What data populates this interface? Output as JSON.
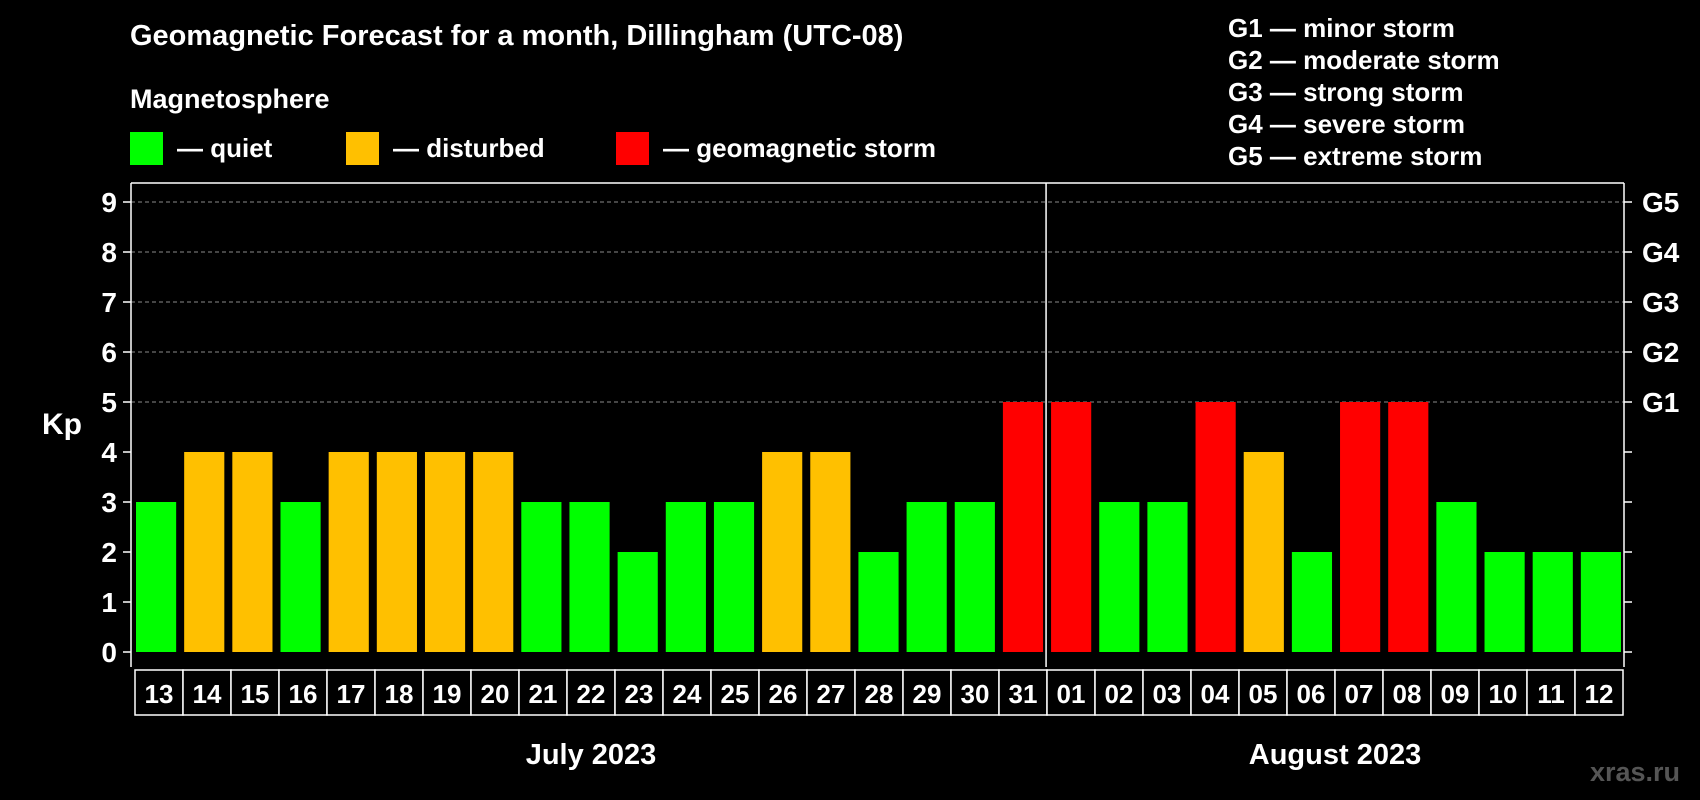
{
  "header": {
    "title": "Geomagnetic Forecast for a month, Dillingham (UTC-08)",
    "magnetosphere_label": "Magnetosphere"
  },
  "legend": [
    {
      "label": "— quiet",
      "color": "#00ff00"
    },
    {
      "label": "— disturbed",
      "color": "#ffc000"
    },
    {
      "label": "— geomagnetic storm",
      "color": "#ff0000"
    }
  ],
  "storm_scale": [
    "G1 — minor storm",
    "G2 — moderate storm",
    "G3 — strong storm",
    "G4 — severe storm",
    "G5 — extreme storm"
  ],
  "chart_data": {
    "type": "bar",
    "ylabel": "Kp",
    "ylim": [
      0,
      9
    ],
    "yticks": [
      "0",
      "1",
      "2",
      "3",
      "4",
      "5",
      "6",
      "7",
      "8",
      "9"
    ],
    "right_axis_labels": [
      {
        "kp": 5,
        "label": "G1"
      },
      {
        "kp": 6,
        "label": "G2"
      },
      {
        "kp": 7,
        "label": "G3"
      },
      {
        "kp": 8,
        "label": "G4"
      },
      {
        "kp": 9,
        "label": "G5"
      }
    ],
    "categories": [
      "13",
      "14",
      "15",
      "16",
      "17",
      "18",
      "19",
      "20",
      "21",
      "22",
      "23",
      "24",
      "25",
      "26",
      "27",
      "28",
      "29",
      "30",
      "31",
      "01",
      "02",
      "03",
      "04",
      "05",
      "06",
      "07",
      "08",
      "09",
      "10",
      "11",
      "12"
    ],
    "values": [
      3,
      4,
      4,
      3,
      4,
      4,
      4,
      4,
      3,
      3,
      2,
      3,
      3,
      4,
      4,
      2,
      3,
      3,
      5,
      5,
      3,
      3,
      5,
      4,
      2,
      5,
      5,
      3,
      2,
      2,
      2
    ],
    "month_labels": [
      {
        "label": "July 2023",
        "from": "13",
        "to": "31"
      },
      {
        "label": "August 2023",
        "from": "01",
        "to": "12"
      }
    ],
    "color_rule": {
      "quiet": "#00ff00",
      "disturbed": "#ffc000",
      "storm": "#ff0000"
    },
    "grid": "dashed lines at Kp 5–9"
  },
  "watermark": "xras.ru"
}
